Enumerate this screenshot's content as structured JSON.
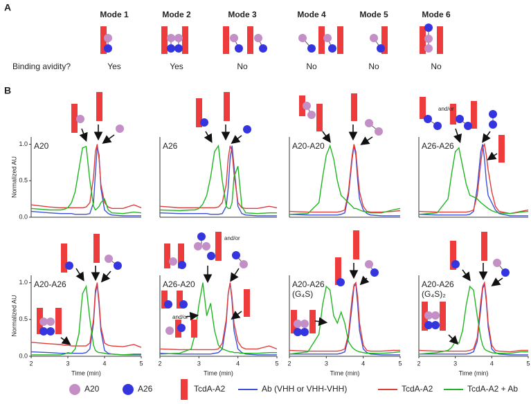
{
  "panel_labels": [
    "A",
    "B"
  ],
  "avidity_question": "Binding avidity?",
  "modes": [
    {
      "name": "Mode 1",
      "avidity": "Yes"
    },
    {
      "name": "Mode 2",
      "avidity": "Yes"
    },
    {
      "name": "Mode 3",
      "avidity": "No"
    },
    {
      "name": "Mode 4",
      "avidity": "No"
    },
    {
      "name": "Mode 5",
      "avidity": "No"
    },
    {
      "name": "Mode 6",
      "avidity": "No"
    }
  ],
  "legend": [
    {
      "name": "A20",
      "shape": "circle",
      "color": "#c48ec6"
    },
    {
      "name": "A26",
      "shape": "circle",
      "color": "#3535e0"
    },
    {
      "name": "TcdA-A2",
      "shape": "bar",
      "color": "#ee3b3b"
    },
    {
      "name": "Ab (VHH or VHH-VHH)",
      "shape": "line",
      "color": "#3b4fd8"
    },
    {
      "name": "TcdA-A2",
      "shape": "line",
      "color": "#e23b3b"
    },
    {
      "name": "TcdA-A2 + Ab",
      "shape": "line",
      "color": "#1fb51f"
    }
  ],
  "chart_data": [
    {
      "type": "line",
      "title": "A20",
      "xlim": [
        2,
        5
      ],
      "ylim": [
        0,
        1.1
      ],
      "ylabel": "Normalized AU",
      "yticks": [
        {
          "value": 0,
          "label": "0.0"
        },
        {
          "value": 0.5,
          "label": "0.5"
        },
        {
          "value": 1,
          "label": "1.0"
        }
      ],
      "x": [
        2,
        2.5,
        2.8,
        2.9,
        3.0,
        3.1,
        3.2,
        3.3,
        3.4,
        3.5,
        3.6,
        3.7,
        3.75,
        3.8,
        3.85,
        3.9,
        4.0,
        4.1,
        4.2,
        4.5,
        4.8,
        5
      ],
      "series": [
        {
          "color": "#3b4fd8",
          "values": [
            0.08,
            0.06,
            0.05,
            0.05,
            0.05,
            0.05,
            0.04,
            0.04,
            0.04,
            0.04,
            0.05,
            0.2,
            0.6,
            0.97,
            0.85,
            0.4,
            0.1,
            0.05,
            0.03,
            0.02,
            0.02,
            0.02
          ]
        },
        {
          "color": "#e23b3b",
          "values": [
            0.17,
            0.14,
            0.13,
            0.13,
            0.13,
            0.13,
            0.13,
            0.13,
            0.13,
            0.14,
            0.2,
            0.55,
            0.9,
            1.0,
            0.8,
            0.45,
            0.2,
            0.14,
            0.12,
            0.12,
            0.17,
            0.13
          ]
        },
        {
          "color": "#1fb51f",
          "values": [
            0.12,
            0.1,
            0.1,
            0.11,
            0.13,
            0.2,
            0.35,
            0.65,
            0.95,
            0.97,
            0.5,
            0.15,
            0.1,
            0.12,
            0.15,
            0.2,
            0.25,
            0.1,
            0.06,
            0.05,
            0.07,
            0.06
          ]
        }
      ]
    },
    {
      "type": "line",
      "title": "A26",
      "xlim": [
        2,
        5
      ],
      "ylim": [
        0,
        1.1
      ],
      "x": [
        2,
        2.5,
        2.8,
        2.9,
        3.0,
        3.1,
        3.2,
        3.3,
        3.4,
        3.5,
        3.6,
        3.7,
        3.75,
        3.8,
        3.85,
        3.9,
        4.0,
        4.1,
        4.2,
        4.5,
        4.8,
        5
      ],
      "series": [
        {
          "color": "#3b4fd8",
          "values": [
            0.06,
            0.05,
            0.05,
            0.05,
            0.05,
            0.05,
            0.05,
            0.04,
            0.04,
            0.04,
            0.05,
            0.15,
            0.4,
            0.8,
            0.98,
            0.7,
            0.15,
            0.05,
            0.03,
            0.02,
            0.02,
            0.02
          ]
        },
        {
          "color": "#e23b3b",
          "values": [
            0.15,
            0.13,
            0.13,
            0.13,
            0.13,
            0.13,
            0.13,
            0.13,
            0.13,
            0.14,
            0.2,
            0.45,
            0.8,
            0.98,
            0.9,
            0.6,
            0.2,
            0.13,
            0.12,
            0.12,
            0.15,
            0.13
          ]
        },
        {
          "color": "#1fb51f",
          "values": [
            0.1,
            0.09,
            0.1,
            0.1,
            0.12,
            0.18,
            0.3,
            0.55,
            0.9,
            0.98,
            0.5,
            0.15,
            0.12,
            0.12,
            0.2,
            0.55,
            0.7,
            0.15,
            0.06,
            0.05,
            0.06,
            0.06
          ]
        }
      ]
    },
    {
      "type": "line",
      "title": "A20-A20",
      "xlim": [
        2,
        5
      ],
      "ylim": [
        0,
        1.1
      ],
      "x": [
        2,
        2.5,
        2.8,
        2.9,
        3.0,
        3.1,
        3.2,
        3.3,
        3.4,
        3.5,
        3.6,
        3.7,
        3.75,
        3.8,
        3.85,
        3.9,
        4.0,
        4.1,
        4.2,
        4.5,
        4.8,
        5
      ],
      "series": [
        {
          "color": "#3b4fd8",
          "values": [
            0.04,
            0.03,
            0.03,
            0.03,
            0.03,
            0.03,
            0.03,
            0.03,
            0.04,
            0.06,
            0.3,
            0.8,
            0.98,
            0.85,
            0.5,
            0.25,
            0.1,
            0.05,
            0.03,
            0.02,
            0.02,
            0.02
          ]
        },
        {
          "color": "#e23b3b",
          "values": [
            0.08,
            0.07,
            0.07,
            0.07,
            0.07,
            0.07,
            0.07,
            0.07,
            0.08,
            0.1,
            0.35,
            0.85,
            1.0,
            0.9,
            0.6,
            0.35,
            0.15,
            0.08,
            0.07,
            0.07,
            0.08,
            0.09
          ]
        },
        {
          "color": "#1fb51f",
          "values": [
            0.04,
            0.05,
            0.2,
            0.55,
            0.85,
            0.98,
            0.8,
            0.5,
            0.3,
            0.25,
            0.2,
            0.15,
            0.12,
            0.12,
            0.11,
            0.1,
            0.08,
            0.07,
            0.06,
            0.06,
            0.1,
            0.12
          ]
        }
      ]
    },
    {
      "type": "line",
      "title": "A26-A26",
      "xlim": [
        2,
        5
      ],
      "ylim": [
        0,
        1.1
      ],
      "annotations": [
        "and/or"
      ],
      "x": [
        2,
        2.5,
        2.8,
        2.9,
        3.0,
        3.1,
        3.2,
        3.3,
        3.4,
        3.5,
        3.6,
        3.7,
        3.75,
        3.8,
        3.85,
        3.9,
        4.0,
        4.1,
        4.2,
        4.5,
        4.8,
        5
      ],
      "series": [
        {
          "color": "#3b4fd8",
          "values": [
            0.04,
            0.03,
            0.03,
            0.03,
            0.03,
            0.03,
            0.03,
            0.03,
            0.04,
            0.08,
            0.4,
            0.9,
            1.0,
            0.8,
            0.5,
            0.3,
            0.2,
            0.1,
            0.05,
            0.02,
            0.02,
            0.02
          ]
        },
        {
          "color": "#e23b3b",
          "values": [
            0.08,
            0.07,
            0.07,
            0.07,
            0.07,
            0.07,
            0.07,
            0.07,
            0.08,
            0.1,
            0.3,
            0.75,
            0.95,
            1.0,
            0.85,
            0.65,
            0.35,
            0.15,
            0.08,
            0.05,
            0.08,
            0.1
          ]
        },
        {
          "color": "#1fb51f",
          "values": [
            0.04,
            0.06,
            0.25,
            0.6,
            0.9,
            0.95,
            0.7,
            0.45,
            0.3,
            0.28,
            0.25,
            0.2,
            0.18,
            0.16,
            0.14,
            0.12,
            0.09,
            0.07,
            0.06,
            0.05,
            0.07,
            0.08
          ]
        }
      ]
    },
    {
      "type": "line",
      "title": "A20-A26",
      "xlim": [
        2,
        5
      ],
      "ylim": [
        0,
        1.1
      ],
      "ylabel": "Normalized AU",
      "xlabel": "Time (min)",
      "yticks": [
        {
          "value": 0,
          "label": "0.0"
        },
        {
          "value": 0.5,
          "label": "0.5"
        },
        {
          "value": 1,
          "label": "1.0"
        }
      ],
      "xticks": [
        2,
        3,
        4,
        5
      ],
      "x": [
        2,
        2.5,
        2.8,
        2.9,
        3.0,
        3.1,
        3.2,
        3.3,
        3.4,
        3.5,
        3.6,
        3.7,
        3.75,
        3.8,
        3.85,
        3.9,
        4.0,
        4.1,
        4.2,
        4.5,
        4.8,
        5
      ],
      "series": [
        {
          "color": "#3b4fd8",
          "values": [
            0.06,
            0.05,
            0.04,
            0.04,
            0.04,
            0.04,
            0.04,
            0.04,
            0.04,
            0.05,
            0.1,
            0.45,
            0.85,
            0.98,
            0.7,
            0.35,
            0.08,
            0.04,
            0.03,
            0.02,
            0.02,
            0.02
          ]
        },
        {
          "color": "#e23b3b",
          "values": [
            0.19,
            0.17,
            0.16,
            0.15,
            0.15,
            0.14,
            0.14,
            0.14,
            0.14,
            0.14,
            0.18,
            0.5,
            0.9,
            1.0,
            0.75,
            0.4,
            0.18,
            0.15,
            0.14,
            0.13,
            0.16,
            0.12
          ]
        },
        {
          "color": "#1fb51f",
          "values": [
            0.02,
            0.02,
            0.02,
            0.03,
            0.05,
            0.04,
            0.1,
            0.3,
            0.85,
            0.95,
            0.5,
            0.15,
            0.08,
            0.06,
            0.05,
            0.05,
            0.04,
            0.03,
            0.03,
            0.02,
            0.03,
            0.03
          ]
        }
      ]
    },
    {
      "type": "line",
      "title": "A26-A20",
      "xlim": [
        2,
        5
      ],
      "ylim": [
        0,
        1.1
      ],
      "xlabel": "Time (min)",
      "xticks": [
        2,
        3,
        4,
        5
      ],
      "annotations": [
        "and/or",
        "and/or"
      ],
      "x": [
        2,
        2.5,
        2.8,
        2.9,
        3.0,
        3.1,
        3.2,
        3.3,
        3.4,
        3.5,
        3.6,
        3.7,
        3.75,
        3.8,
        3.85,
        3.9,
        4.0,
        4.1,
        4.2,
        4.5,
        4.8,
        5
      ],
      "series": [
        {
          "color": "#3b4fd8",
          "values": [
            0.04,
            0.03,
            0.03,
            0.03,
            0.03,
            0.03,
            0.03,
            0.03,
            0.04,
            0.05,
            0.1,
            0.45,
            0.85,
            1.0,
            0.75,
            0.35,
            0.1,
            0.05,
            0.03,
            0.02,
            0.02,
            0.02
          ]
        },
        {
          "color": "#e23b3b",
          "values": [
            0.1,
            0.09,
            0.09,
            0.09,
            0.09,
            0.09,
            0.09,
            0.09,
            0.09,
            0.1,
            0.18,
            0.5,
            0.85,
            1.0,
            0.8,
            0.45,
            0.2,
            0.12,
            0.1,
            0.1,
            0.14,
            0.1
          ]
        },
        {
          "color": "#1fb51f",
          "values": [
            0.03,
            0.04,
            0.1,
            0.3,
            0.7,
            1.0,
            0.55,
            0.72,
            0.35,
            0.15,
            0.1,
            0.08,
            0.07,
            0.06,
            0.06,
            0.05,
            0.05,
            0.04,
            0.04,
            0.04,
            0.05,
            0.05
          ]
        }
      ]
    },
    {
      "type": "line",
      "title": "A20-A26",
      "subtitle": "(G₄S)",
      "xlim": [
        2,
        5
      ],
      "ylim": [
        0,
        1.1
      ],
      "xlabel": "Time (min)",
      "xticks": [
        2,
        3,
        4,
        5
      ],
      "x": [
        2,
        2.5,
        2.8,
        2.9,
        3.0,
        3.1,
        3.2,
        3.3,
        3.4,
        3.5,
        3.6,
        3.7,
        3.75,
        3.8,
        3.85,
        3.9,
        4.0,
        4.1,
        4.2,
        4.5,
        4.8,
        5
      ],
      "series": [
        {
          "color": "#3b4fd8",
          "values": [
            0.03,
            0.03,
            0.03,
            0.03,
            0.03,
            0.03,
            0.03,
            0.03,
            0.04,
            0.06,
            0.25,
            0.7,
            0.95,
            0.98,
            0.7,
            0.35,
            0.1,
            0.05,
            0.03,
            0.02,
            0.02,
            0.02
          ]
        },
        {
          "color": "#e23b3b",
          "values": [
            0.08,
            0.07,
            0.07,
            0.07,
            0.07,
            0.07,
            0.07,
            0.07,
            0.08,
            0.1,
            0.3,
            0.8,
            0.97,
            1.0,
            0.8,
            0.45,
            0.15,
            0.08,
            0.07,
            0.07,
            0.08,
            0.08
          ]
        },
        {
          "color": "#1fb51f",
          "values": [
            0.03,
            0.06,
            0.3,
            0.7,
            0.95,
            0.9,
            0.55,
            0.45,
            0.6,
            0.45,
            0.2,
            0.12,
            0.1,
            0.08,
            0.07,
            0.06,
            0.05,
            0.04,
            0.04,
            0.04,
            0.05,
            0.06
          ]
        }
      ]
    },
    {
      "type": "line",
      "title": "A20-A26",
      "subtitle": "(G₄S)₂",
      "xlim": [
        2,
        5
      ],
      "ylim": [
        0,
        1.1
      ],
      "xlabel": "Time (min)",
      "xticks": [
        2,
        3,
        4,
        5
      ],
      "x": [
        2,
        2.5,
        2.8,
        2.9,
        3.0,
        3.1,
        3.2,
        3.3,
        3.4,
        3.5,
        3.6,
        3.7,
        3.75,
        3.8,
        3.85,
        3.9,
        4.0,
        4.1,
        4.2,
        4.5,
        4.8,
        5
      ],
      "series": [
        {
          "color": "#3b4fd8",
          "values": [
            0.03,
            0.03,
            0.03,
            0.03,
            0.03,
            0.03,
            0.03,
            0.03,
            0.04,
            0.06,
            0.2,
            0.65,
            0.92,
            0.98,
            0.75,
            0.4,
            0.1,
            0.05,
            0.03,
            0.02,
            0.02,
            0.02
          ]
        },
        {
          "color": "#e23b3b",
          "values": [
            0.08,
            0.07,
            0.07,
            0.07,
            0.07,
            0.07,
            0.07,
            0.07,
            0.08,
            0.1,
            0.25,
            0.75,
            0.95,
            1.0,
            0.8,
            0.45,
            0.15,
            0.08,
            0.07,
            0.06,
            0.08,
            0.08
          ]
        },
        {
          "color": "#1fb51f",
          "values": [
            0.03,
            0.05,
            0.08,
            0.12,
            0.2,
            0.18,
            0.35,
            0.7,
            0.95,
            0.9,
            0.55,
            0.25,
            0.15,
            0.1,
            0.08,
            0.07,
            0.05,
            0.04,
            0.04,
            0.04,
            0.06,
            0.06
          ]
        }
      ]
    }
  ]
}
